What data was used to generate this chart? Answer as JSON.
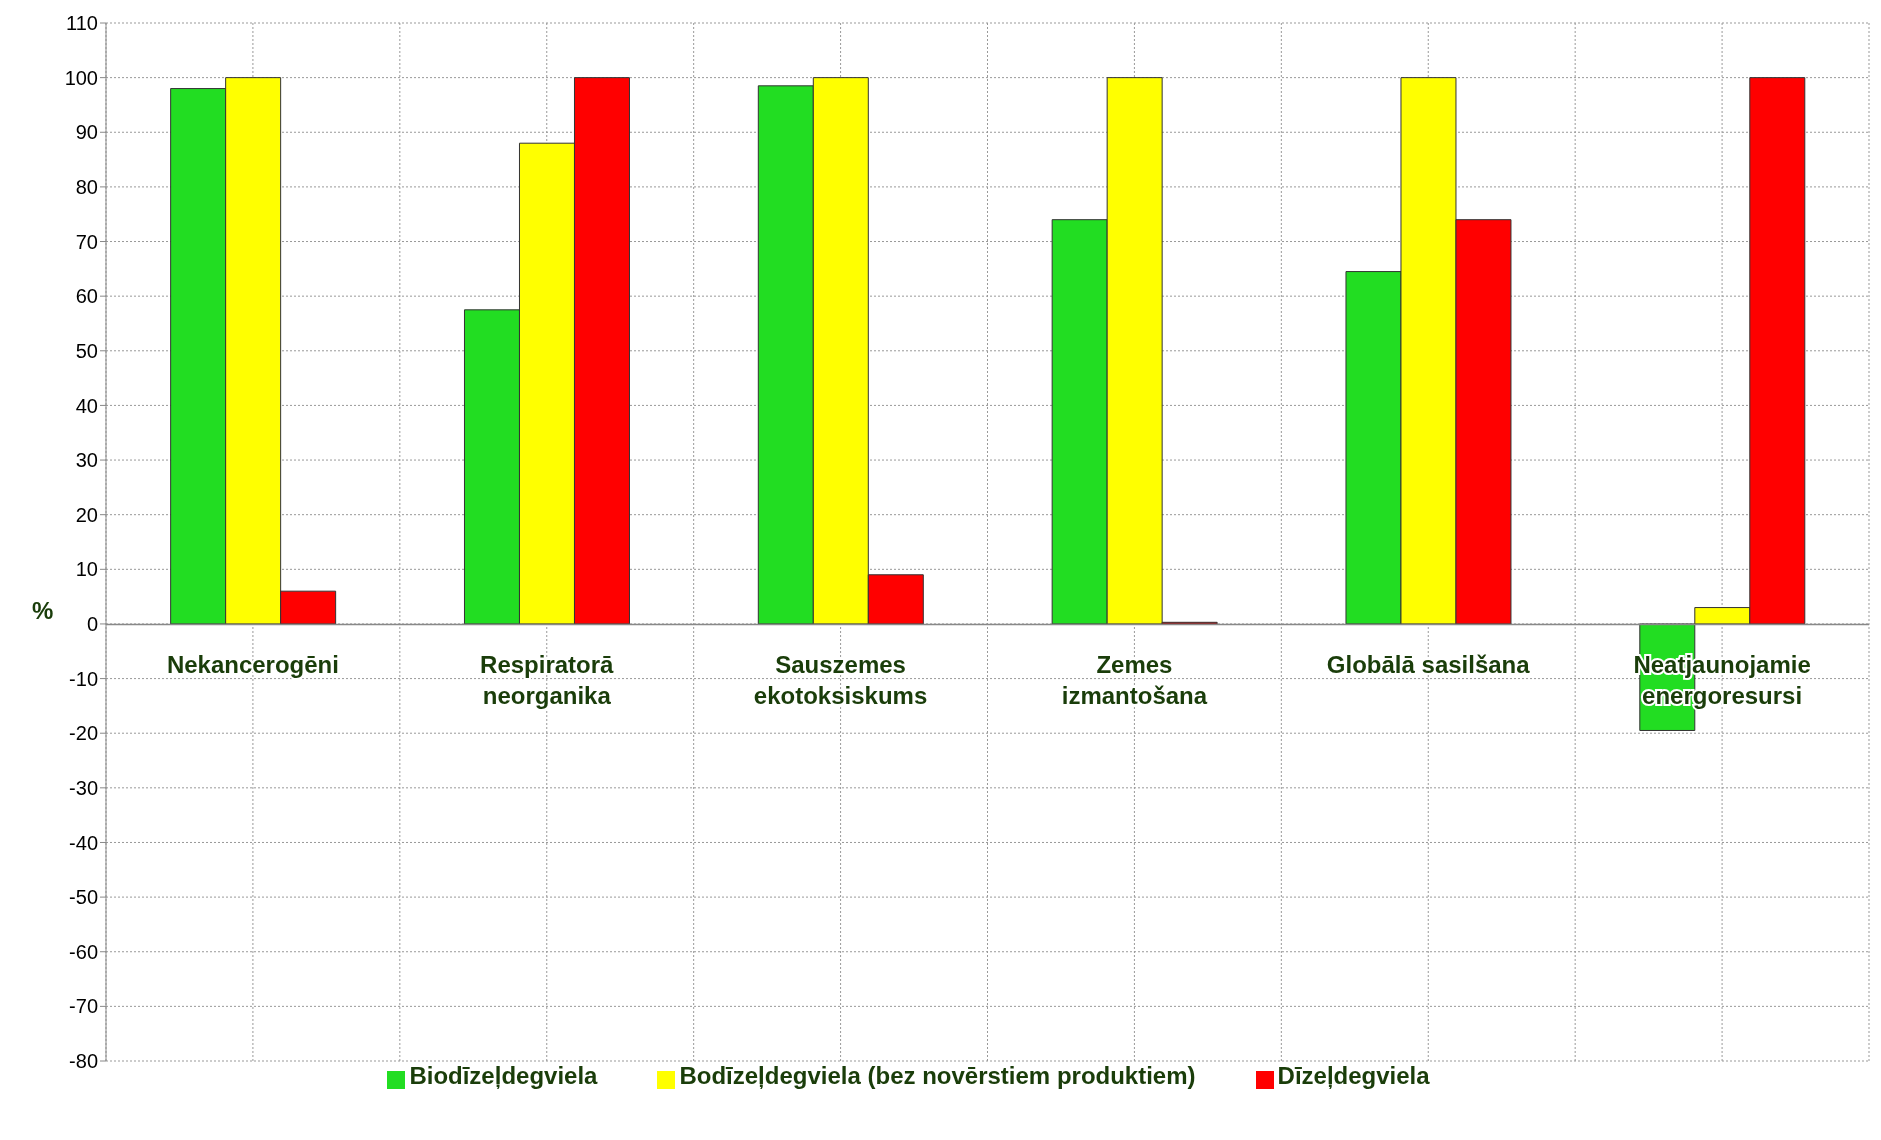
{
  "chart_data": {
    "type": "bar",
    "ylabel": "%",
    "categories": [
      "Nekancerogēni",
      "Respiratorā\nneorganika",
      "Sauszemes\nekotoksiskums",
      "Zemes\nizmantošana",
      "Globālā sasilšana",
      "Neatjaunojamie\nenergoresursi"
    ],
    "series": [
      {
        "name": "Biodīzeļdegviela",
        "color": "#22dd22",
        "values": [
          98,
          57.5,
          98.5,
          74,
          64.5,
          -19.5
        ]
      },
      {
        "name": "Bodīzeļdegviela (bez novērstiem produktiem)",
        "color": "#ffff00",
        "values": [
          100,
          88,
          100,
          100,
          100,
          3
        ]
      },
      {
        "name": "Dīzeļdegviela",
        "color": "#ff0000",
        "values": [
          6,
          100,
          9,
          0.3,
          74,
          100
        ]
      }
    ],
    "ylim": [
      -80,
      110
    ],
    "yticks": [
      -80,
      -70,
      -60,
      -50,
      -40,
      -30,
      -20,
      -10,
      0,
      10,
      20,
      30,
      40,
      50,
      60,
      70,
      80,
      90,
      100,
      110
    ],
    "grid": true,
    "legend": "bottom"
  }
}
